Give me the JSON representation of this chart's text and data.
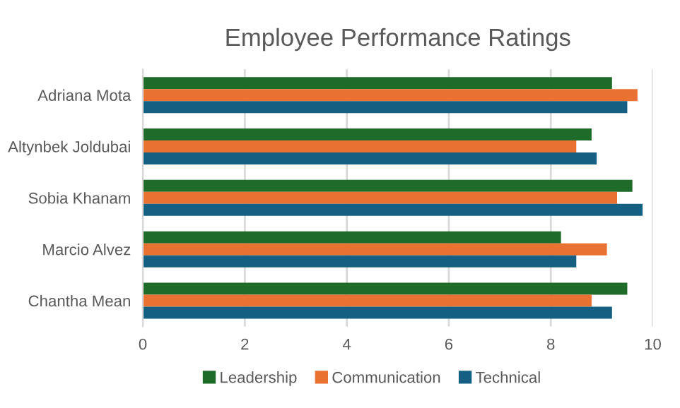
{
  "chart_data": {
    "type": "bar",
    "orientation": "horizontal",
    "title": "Employee Performance Ratings",
    "categories": [
      "Adriana Mota",
      "Altynbek Joldubai",
      "Sobia Khanam",
      "Marcio Alvez",
      "Chantha Mean"
    ],
    "series": [
      {
        "name": "Leadership",
        "color": "#1e6b2a",
        "values": [
          9.2,
          8.8,
          9.6,
          8.2,
          9.5
        ]
      },
      {
        "name": "Communication",
        "color": "#e97132",
        "values": [
          9.7,
          8.5,
          9.3,
          9.1,
          8.8
        ]
      },
      {
        "name": "Technical",
        "color": "#156082",
        "values": [
          9.5,
          8.9,
          9.8,
          8.5,
          9.2
        ]
      }
    ],
    "xlim": [
      0,
      10
    ],
    "xticks": [
      0,
      2,
      4,
      6,
      8,
      10
    ],
    "grid": "x",
    "legend": "bottom"
  }
}
